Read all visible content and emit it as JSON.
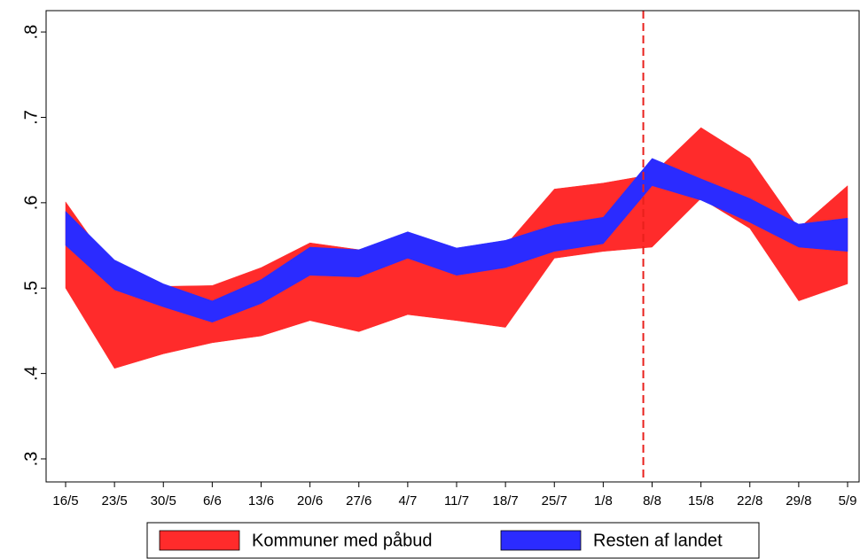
{
  "chart_data": {
    "type": "rangearea",
    "categories": [
      "16/5",
      "23/5",
      "30/5",
      "6/6",
      "13/6",
      "20/6",
      "27/6",
      "4/7",
      "11/7",
      "18/7",
      "25/7",
      "1/8",
      "8/8",
      "15/8",
      "22/8",
      "29/8",
      "5/9"
    ],
    "series": [
      {
        "name": "Kommuner med påbud",
        "color": "#ff2b2b",
        "high": [
          0.601,
          0.52,
          0.502,
          0.503,
          0.524,
          0.553,
          0.545,
          0.56,
          0.545,
          0.55,
          0.616,
          0.623,
          0.633,
          0.688,
          0.652,
          0.57,
          0.62
        ],
        "low": [
          0.5,
          0.406,
          0.423,
          0.436,
          0.444,
          0.462,
          0.449,
          0.469,
          0.462,
          0.454,
          0.535,
          0.543,
          0.548,
          0.605,
          0.57,
          0.485,
          0.505
        ]
      },
      {
        "name": "Resten af landet",
        "color": "#2b2bff",
        "high": [
          0.59,
          0.533,
          0.505,
          0.485,
          0.51,
          0.548,
          0.545,
          0.566,
          0.547,
          0.556,
          0.574,
          0.583,
          0.652,
          0.628,
          0.605,
          0.575,
          0.582
        ],
        "low": [
          0.55,
          0.498,
          0.478,
          0.46,
          0.482,
          0.515,
          0.513,
          0.535,
          0.515,
          0.524,
          0.543,
          0.552,
          0.62,
          0.603,
          0.577,
          0.548,
          0.543
        ]
      }
    ],
    "ylim": [
      0.273,
      0.825
    ],
    "yticks": [
      {
        "value": 0.3,
        "label": ".3"
      },
      {
        "value": 0.4,
        "label": ".4"
      },
      {
        "value": 0.5,
        "label": ".5"
      },
      {
        "value": 0.6,
        "label": ".6"
      },
      {
        "value": 0.7,
        "label": ".7"
      },
      {
        "value": 0.8,
        "label": ".8"
      }
    ],
    "grid": false,
    "legend": "bottom"
  }
}
